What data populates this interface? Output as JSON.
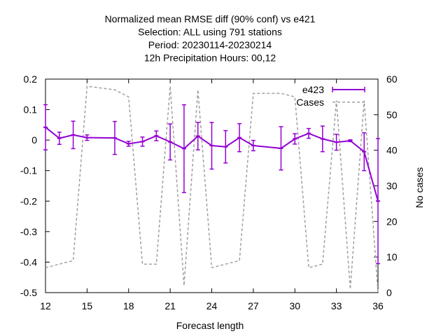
{
  "chart_data": {
    "type": "line",
    "title_lines": [
      "Normalized mean RMSE diff (90% conf) vs e421",
      "Selection: ALL using   791 stations",
      "Period: 20230114-20230214",
      "12h Precipitation   Hours:  00,12"
    ],
    "xlabel": "Forecast length",
    "ylabel": "",
    "y2label": "No cases",
    "xlim": [
      12,
      36
    ],
    "ylim": [
      -0.5,
      0.2
    ],
    "y2lim": [
      0,
      60
    ],
    "xticks": [
      "12",
      "15",
      "18",
      "21",
      "24",
      "27",
      "30",
      "33",
      "36"
    ],
    "yticks": [
      "-0.5",
      "-0.4",
      "-0.3",
      "-0.2",
      "-0.1",
      "0",
      "0.1",
      "0.2"
    ],
    "y2ticks": [
      "0",
      "10",
      "20",
      "30",
      "40",
      "50",
      "60"
    ],
    "series": [
      {
        "name": "e423",
        "color": "#9400d3",
        "x": [
          12,
          13,
          14,
          15,
          17,
          18,
          19,
          20,
          21,
          22,
          23,
          24,
          25,
          26,
          27,
          29,
          30,
          31,
          32,
          33,
          34,
          35,
          36
        ],
        "y": [
          0.042,
          0.006,
          0.017,
          0.008,
          0.007,
          -0.012,
          -0.005,
          0.014,
          -0.006,
          -0.028,
          0.013,
          -0.018,
          -0.022,
          0.008,
          -0.018,
          -0.027,
          0.004,
          0.022,
          0.004,
          -0.007,
          -0.002,
          -0.038,
          -0.2
        ],
        "err_low": [
          -0.032,
          -0.014,
          -0.028,
          -0.001,
          -0.047,
          -0.02,
          -0.02,
          -0.002,
          -0.065,
          -0.172,
          -0.032,
          -0.095,
          -0.075,
          -0.038,
          -0.035,
          -0.098,
          -0.013,
          0.006,
          -0.038,
          -0.033,
          -0.005,
          -0.1,
          -0.405
        ],
        "err_high": [
          0.116,
          0.026,
          0.062,
          0.017,
          0.061,
          -0.004,
          0.01,
          0.03,
          0.053,
          0.116,
          0.058,
          0.058,
          0.031,
          0.054,
          -0.001,
          0.044,
          0.021,
          0.038,
          0.046,
          0.019,
          0.001,
          0.024,
          0.005
        ]
      },
      {
        "name": "Cases",
        "color": "#a0a0a0",
        "axis": "y2",
        "x": [
          12,
          13,
          14,
          15,
          17,
          18,
          19,
          20,
          21,
          22,
          23,
          24,
          25,
          26,
          27,
          29,
          30,
          31,
          32,
          33,
          34,
          35,
          36
        ],
        "y": [
          7,
          8,
          9,
          58,
          57,
          55,
          8,
          8,
          58,
          2,
          57,
          7,
          8,
          9,
          56,
          56,
          55,
          7,
          8,
          54,
          1,
          54,
          0
        ]
      }
    ],
    "legend_position": "top-right",
    "grid": false
  }
}
